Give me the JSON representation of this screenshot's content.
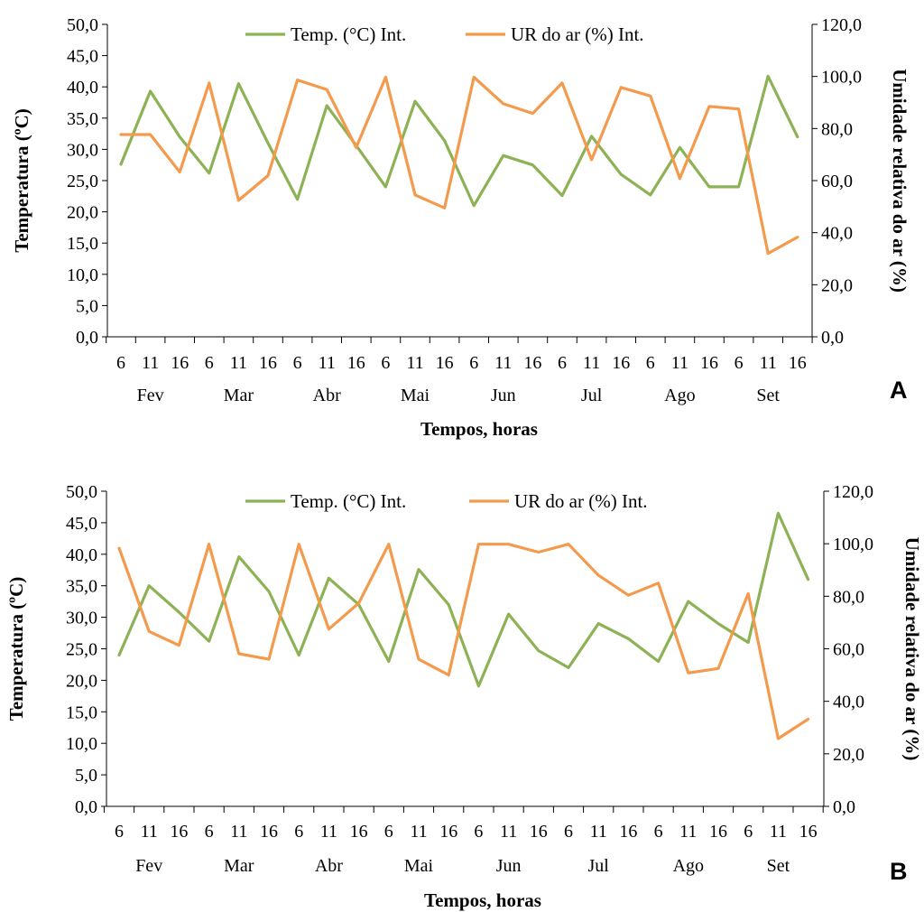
{
  "colors": {
    "temp": "#8db255",
    "rh": "#f39a4c",
    "axis": "#000000"
  },
  "chart_data": [
    {
      "type": "line",
      "panel_label": "A",
      "xlabel": "Tempos, horas",
      "ylabel_left": "Temperatura (ºC)",
      "ylabel_right": "Umidade relativa do ar (%)",
      "ylim_left": [
        0,
        50
      ],
      "ylim_right": [
        0,
        120
      ],
      "y_ticks_left": [
        "0,0",
        "5,0",
        "10,0",
        "15,0",
        "20,0",
        "25,0",
        "30,0",
        "35,0",
        "40,0",
        "45,0",
        "50,0"
      ],
      "y_ticks_right": [
        "0,0",
        "20,0",
        "40,0",
        "60,0",
        "80,0",
        "100,0",
        "120,0"
      ],
      "hours": [
        "6",
        "11",
        "16",
        "6",
        "11",
        "16",
        "6",
        "11",
        "16",
        "6",
        "11",
        "16",
        "6",
        "11",
        "16",
        "6",
        "11",
        "16",
        "6",
        "11",
        "16",
        "6",
        "11",
        "16"
      ],
      "months": [
        "Fev",
        "Mar",
        "Abr",
        "Mai",
        "Jun",
        "Jul",
        "Ago",
        "Set"
      ],
      "legend": [
        "Temp. (°C) Int.",
        "UR do ar (%) Int."
      ],
      "series": [
        {
          "name": "Temp. (°C) Int.",
          "axis": "left",
          "values": [
            27.6,
            39.3,
            32.0,
            26.2,
            40.5,
            31.0,
            22.0,
            37.0,
            30.6,
            24.0,
            37.7,
            31.4,
            21.0,
            29.0,
            27.5,
            22.6,
            32.1,
            26.0,
            22.7,
            30.3,
            24.0,
            24.0,
            41.7,
            32.0
          ]
        },
        {
          "name": "UR do ar (%) Int.",
          "axis": "right",
          "values": [
            77.7,
            77.7,
            63.3,
            97.5,
            52.4,
            61.9,
            98.6,
            95.0,
            72.7,
            99.7,
            54.5,
            49.5,
            99.7,
            89.5,
            85.8,
            97.5,
            68.0,
            95.8,
            92.5,
            60.8,
            88.5,
            87.5,
            32.0,
            38.3
          ]
        }
      ]
    },
    {
      "type": "line",
      "panel_label": "B",
      "xlabel": "Tempos, horas",
      "ylabel_left": "Temperatura (ºC)",
      "ylabel_right": "Umidade relativa do ar (%)",
      "ylim_left": [
        0,
        50
      ],
      "ylim_right": [
        0,
        120
      ],
      "y_ticks_left": [
        "0,0",
        "5,0",
        "10,0",
        "15,0",
        "20,0",
        "25,0",
        "30,0",
        "35,0",
        "40,0",
        "45,0",
        "50,0"
      ],
      "y_ticks_right": [
        "0,0",
        "20,0",
        "40,0",
        "60,0",
        "80,0",
        "100,0",
        "120,0"
      ],
      "hours": [
        "6",
        "11",
        "16",
        "6",
        "11",
        "16",
        "6",
        "11",
        "16",
        "6",
        "11",
        "16",
        "6",
        "11",
        "16",
        "6",
        "11",
        "16",
        "6",
        "11",
        "16",
        "6",
        "11",
        "16"
      ],
      "months": [
        "Fev",
        "Mar",
        "Abr",
        "Mai",
        "Jun",
        "Jul",
        "Ago",
        "Set"
      ],
      "legend": [
        "Temp. (°C) Int.",
        "UR do ar (%) Int."
      ],
      "series": [
        {
          "name": "Temp. (°C) Int.",
          "axis": "left",
          "values": [
            24.0,
            35.0,
            30.8,
            26.2,
            39.6,
            34.1,
            24.0,
            36.2,
            32.0,
            23.0,
            37.6,
            32.0,
            19.1,
            30.5,
            24.7,
            22.0,
            29.0,
            26.6,
            23.0,
            32.5,
            29.0,
            26.0,
            46.5,
            36.0
          ]
        },
        {
          "name": "UR do ar (%) Int.",
          "axis": "right",
          "values": [
            98.3,
            66.6,
            61.3,
            99.8,
            58.1,
            56.0,
            99.8,
            67.5,
            77.4,
            99.8,
            56.0,
            50.0,
            99.8,
            99.8,
            96.8,
            99.8,
            88.0,
            80.4,
            85.0,
            50.8,
            52.5,
            81.0,
            25.8,
            33.2
          ]
        }
      ]
    }
  ]
}
